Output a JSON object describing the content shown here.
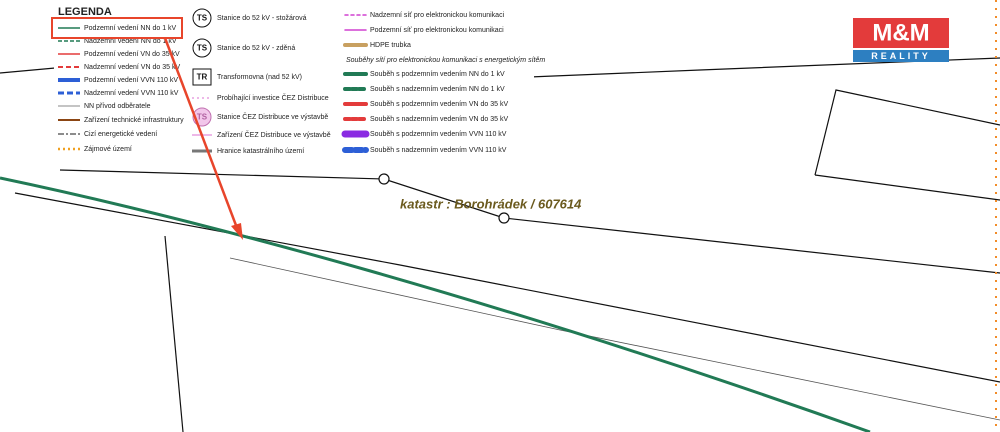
{
  "legend": {
    "title": "LEGENDA",
    "col1": [
      "Podzemní vedení NN do 1 kV",
      "Nadzemní vedení NN do 1 kV",
      "Podzemní vedení VN do 35 kV",
      "Nadzemní vedení VN do 35 kV",
      "Podzemní vedení VVN 110 kV",
      "Nadzemní vedení VVN 110 kV",
      "NN přívod odběratele",
      "Zařízení technické infrastruktury",
      "Cizí energetické vedení",
      "Zájmové území"
    ],
    "col2": [
      {
        "icon": "TS",
        "label": "Stanice do 52 kV - stožárová"
      },
      {
        "icon": "TS",
        "label": "Stanice do 52 kV - zděná"
      },
      {
        "icon": "TR",
        "label": "Transformovna (nad 52 kV)"
      },
      {
        "label": "Probíhající investice ČEZ Distribuce"
      },
      {
        "icon": "TS",
        "label": "Stanice ČEZ Distribuce ve výstavbě"
      },
      {
        "label": "Zařízení ČEZ Distribuce ve výstavbě"
      },
      {
        "label": "Hranice katastrálního území"
      }
    ],
    "col3": [
      "Nadzemní síť pro elektronickou komunikaci",
      "Podzemní síť pro elektronickou komunikaci",
      "HDPE trubka",
      "Souběhy sítí pro elektronickou komunikaci s energetickým sítěm",
      "Souběh s podzemním vedením NN do 1 kV",
      "Souběh s nadzemním vedením NN do 1 kV",
      "Souběh s podzemním vedením VN do 35 kV",
      "Souběh s nadzemním vedením VN do 35 kV",
      "Souběh s podzemním vedením VVN 110 kV",
      "Souběh s nadzemním vedením VVN 110 kV"
    ]
  },
  "map": {
    "cadastre_label": "katastr : Borohrádek / 607614"
  },
  "logo": {
    "brand": "M&M",
    "tagline": "REALITY"
  }
}
